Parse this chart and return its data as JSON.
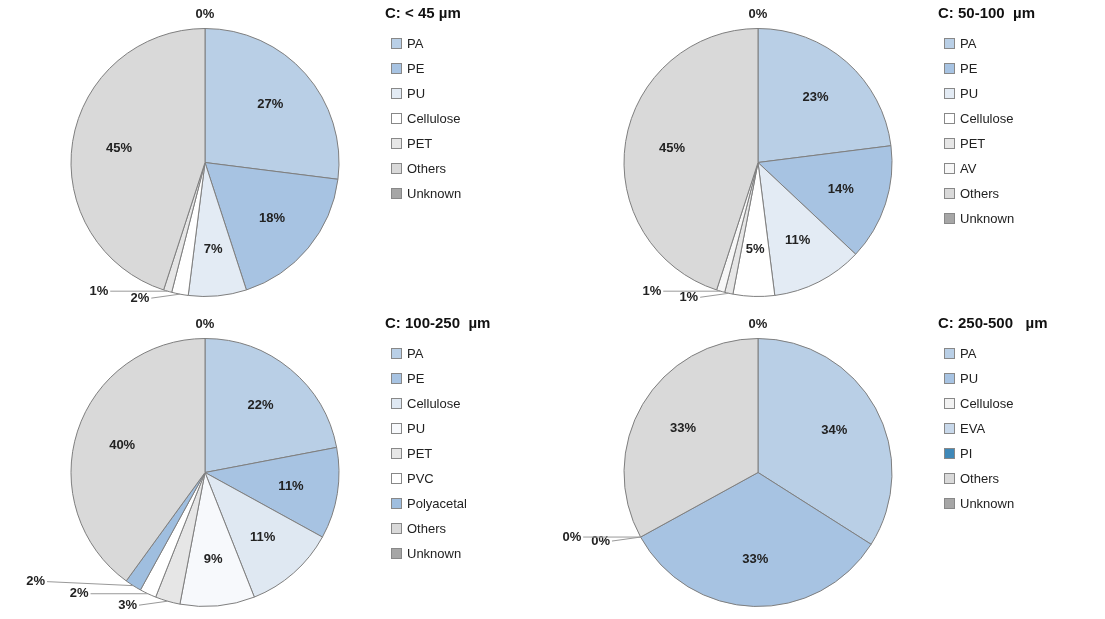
{
  "chart_data": [
    {
      "type": "pie",
      "title": "C: < 45 µm",
      "categories": [
        "PA",
        "PE",
        "PU",
        "Cellulose",
        "PET",
        "Others",
        "Unknown"
      ],
      "values": [
        27,
        18,
        7,
        2,
        1,
        45,
        0
      ],
      "value_labels": [
        "27%",
        "18%",
        "7%",
        "2%",
        "1%",
        "45%",
        "0%"
      ],
      "colors": [
        "#b9cfe6",
        "#a7c3e2",
        "#e3ebf4",
        "#ffffff",
        "#e6e6e6",
        "#d9d9d9",
        "#a6a6a6"
      ],
      "legend": "right"
    },
    {
      "type": "pie",
      "title": "C: 50-100  µm",
      "categories": [
        "PA",
        "PE",
        "PU",
        "Cellulose",
        "PET",
        "AV",
        "Others",
        "Unknown"
      ],
      "values": [
        23,
        14,
        11,
        5,
        1,
        1,
        45,
        0
      ],
      "value_labels": [
        "23%",
        "14%",
        "11%",
        "5%",
        "1%",
        "1%",
        "45%",
        "0%"
      ],
      "colors": [
        "#b9cfe6",
        "#a7c3e2",
        "#e3ebf4",
        "#ffffff",
        "#e6e6e6",
        "#f7f7f7",
        "#d9d9d9",
        "#a6a6a6"
      ],
      "legend": "right"
    },
    {
      "type": "pie",
      "title": "C: 100-250  µm",
      "categories": [
        "PA",
        "PE",
        "Cellulose",
        "PU",
        "PET",
        "PVC",
        "Polyacetal",
        "Others",
        "Unknown"
      ],
      "values": [
        22,
        11,
        11,
        9,
        3,
        2,
        2,
        40,
        0
      ],
      "value_labels": [
        "22%",
        "11%",
        "11%",
        "9%",
        "3%",
        "2%",
        "2%",
        "40%",
        "0%"
      ],
      "colors": [
        "#b9cfe6",
        "#a7c3e2",
        "#dfe8f2",
        "#f7f9fc",
        "#e6e6e6",
        "#ffffff",
        "#9fbedf",
        "#d9d9d9",
        "#a6a6a6"
      ],
      "legend": "right"
    },
    {
      "type": "pie",
      "title": "C: 250-500   µm",
      "categories": [
        "PA",
        "PU",
        "Cellulose",
        "EVA",
        "PI",
        "Others",
        "Unknown"
      ],
      "values": [
        34,
        33,
        0,
        0,
        0,
        33,
        0
      ],
      "value_labels": [
        "34%",
        "33%",
        "0%",
        "0%",
        null,
        "33%",
        "0%"
      ],
      "colors": [
        "#b9cfe6",
        "#a7c3e2",
        "#f2f2f2",
        "#c8d8ea",
        "#3f88b8",
        "#d9d9d9",
        "#a6a6a6"
      ],
      "legend": "right"
    }
  ]
}
